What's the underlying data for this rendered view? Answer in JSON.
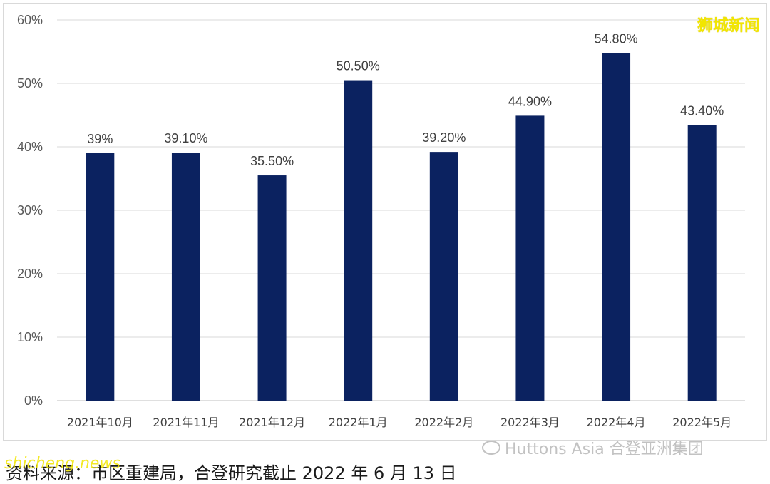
{
  "chart_data": {
    "type": "bar",
    "categories": [
      "2021年10月",
      "2021年11月",
      "2021年12月",
      "2022年1月",
      "2022年2月",
      "2022年3月",
      "2022年4月",
      "2022年5月"
    ],
    "values": [
      39.0,
      39.1,
      35.5,
      50.5,
      39.2,
      44.9,
      54.8,
      43.4
    ],
    "data_labels": [
      "39%",
      "39.10%",
      "35.50%",
      "50.50%",
      "39.20%",
      "44.90%",
      "54.80%",
      "43.40%"
    ],
    "y_ticks": [
      "0%",
      "10%",
      "20%",
      "30%",
      "40%",
      "50%",
      "60%"
    ],
    "ylim": [
      0,
      60
    ],
    "grid": true,
    "bar_color": "#0b2260",
    "title": "",
    "xlabel": "",
    "ylabel": ""
  },
  "watermark": "狮城新闻",
  "brand": "Huttons Asia 合登亚洲集团",
  "source_text": "资料来源：市区重建局，合登研究截止 2022 年 6 月 13 日",
  "site_watermark": "shicheng.news"
}
